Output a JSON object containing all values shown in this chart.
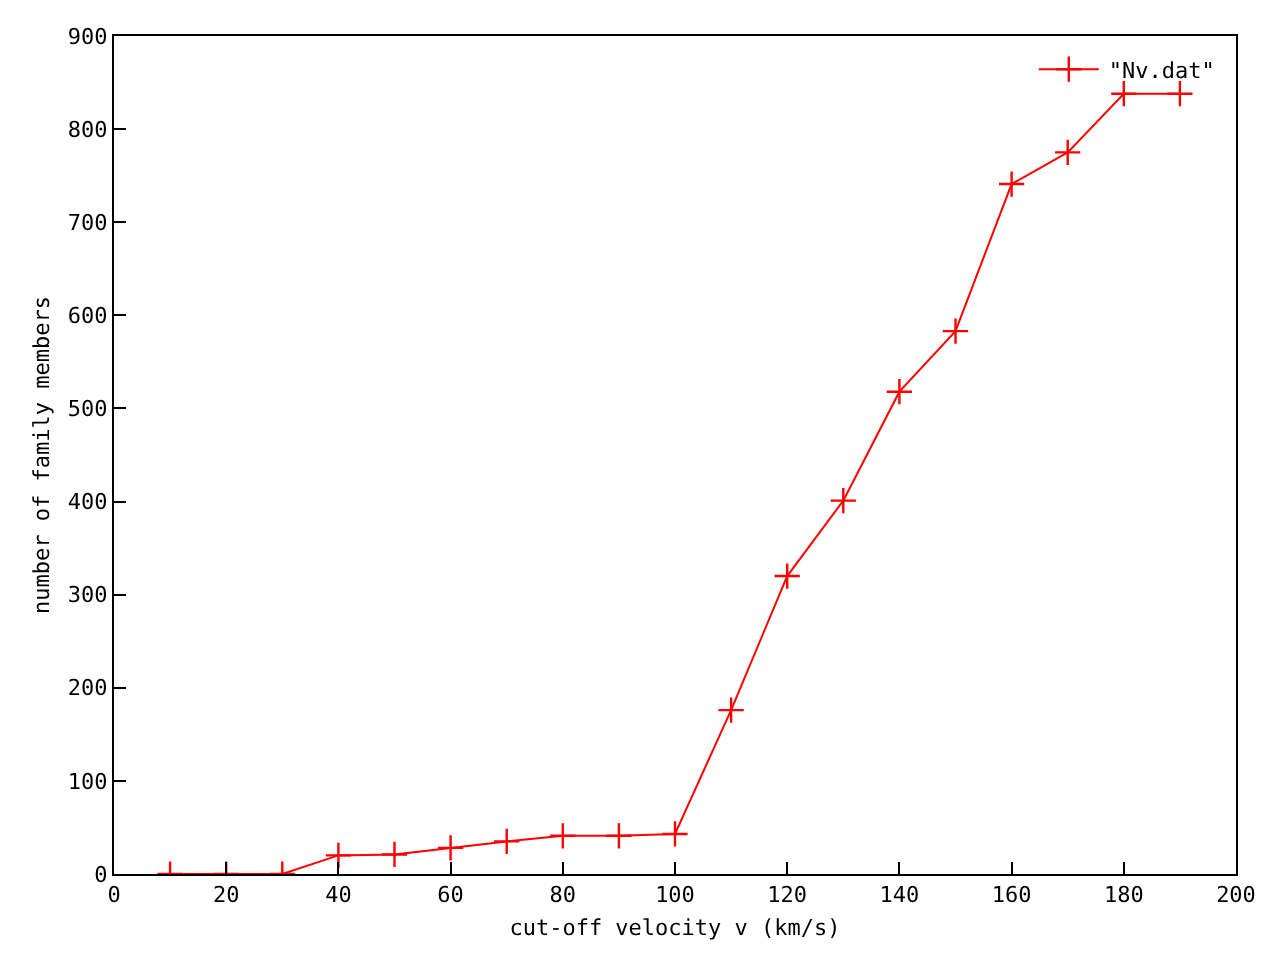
{
  "chart_data": {
    "type": "line",
    "xlabel": "cut-off velocity v (km/s)",
    "ylabel": "number of family members",
    "x": [
      10,
      20,
      30,
      40,
      50,
      60,
      70,
      80,
      90,
      100,
      110,
      120,
      130,
      140,
      150,
      160,
      170,
      180,
      190
    ],
    "series": [
      {
        "name": "\"Nv.dat\"",
        "color": "#ff0000",
        "values": [
          0,
          0,
          0,
          20,
          21,
          28,
          35,
          41,
          41,
          43,
          176,
          320,
          401,
          518,
          583,
          741,
          775,
          838,
          838
        ]
      }
    ],
    "xlim": [
      0,
      200
    ],
    "xticks": [
      0,
      20,
      40,
      60,
      80,
      100,
      120,
      140,
      160,
      180,
      200
    ],
    "ylim": [
      0,
      900
    ],
    "yticks": [
      0,
      100,
      200,
      300,
      400,
      500,
      600,
      700,
      800,
      900
    ],
    "marker": "cross",
    "line_style": "solid",
    "legend": "top right"
  }
}
